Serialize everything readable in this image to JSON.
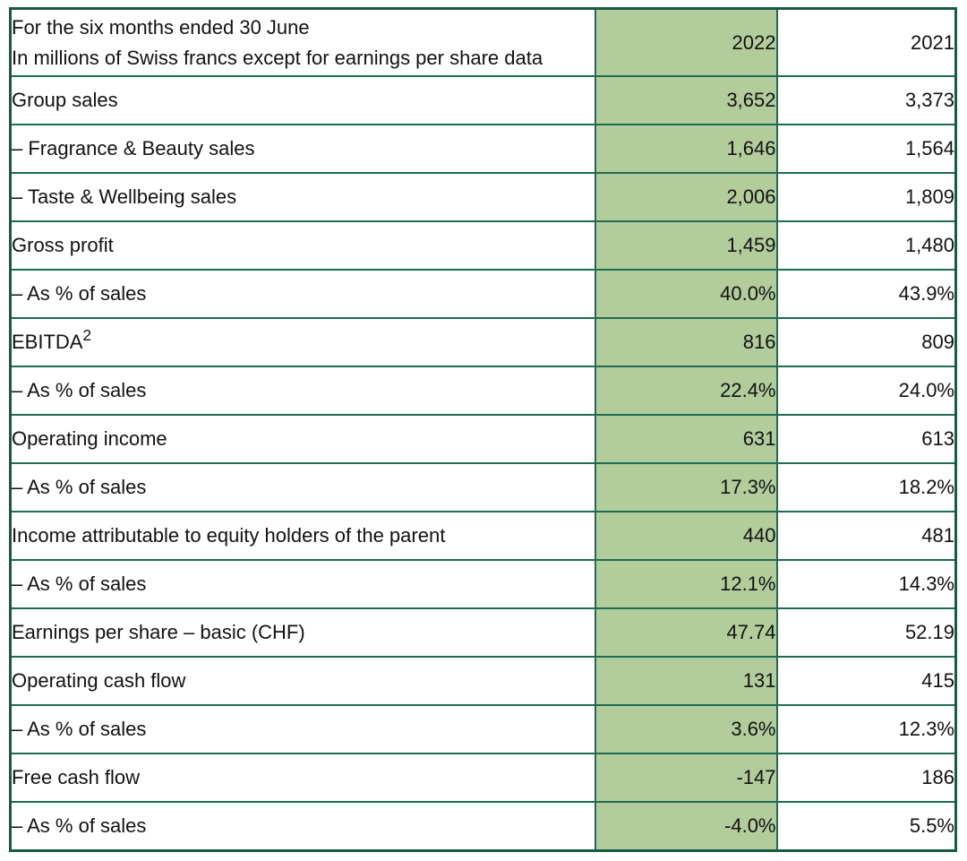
{
  "table": {
    "header": {
      "title_line1": "For the six months ended 30 June",
      "title_line2": "In millions of Swiss francs except for earnings per share data",
      "col_2022": "2022",
      "col_2021": "2021"
    },
    "rows": [
      {
        "label": "Group sales",
        "y2022": "3,652",
        "y2021": "3,373"
      },
      {
        "label": "– Fragrance & Beauty sales",
        "y2022": "1,646",
        "y2021": "1,564"
      },
      {
        "label": "– Taste & Wellbeing sales",
        "y2022": "2,006",
        "y2021": "1,809"
      },
      {
        "label": "Gross profit",
        "y2022": "1,459",
        "y2021": "1,480"
      },
      {
        "label": "– As % of sales",
        "y2022": "40.0%",
        "y2021": "43.9%"
      },
      {
        "label": "EBITDA",
        "label_sup": "2",
        "y2022": "816",
        "y2021": "809"
      },
      {
        "label": "– As % of sales",
        "y2022": "22.4%",
        "y2021": "24.0%"
      },
      {
        "label": "Operating income",
        "y2022": "631",
        "y2021": "613"
      },
      {
        "label": "– As % of sales",
        "y2022": "17.3%",
        "y2021": "18.2%"
      },
      {
        "label": "Income attributable to equity holders of the parent",
        "y2022": "440",
        "y2021": "481"
      },
      {
        "label": "– As % of sales",
        "y2022": "12.1%",
        "y2021": "14.3%"
      },
      {
        "label": "Earnings per share – basic (CHF)",
        "y2022": "47.74",
        "y2021": "52.19"
      },
      {
        "label": "Operating cash flow",
        "y2022": "131",
        "y2021": "415"
      },
      {
        "label": "– As % of sales",
        "y2022": "3.6%",
        "y2021": "12.3%"
      },
      {
        "label": "Free cash flow",
        "y2022": "-147",
        "y2021": "186"
      },
      {
        "label": "– As % of sales",
        "y2022": "-4.0%",
        "y2021": "5.5%"
      }
    ],
    "colors": {
      "highlight_column_fill": "#b3cc9c",
      "border": "#1e6b53",
      "text": "#121212"
    }
  }
}
